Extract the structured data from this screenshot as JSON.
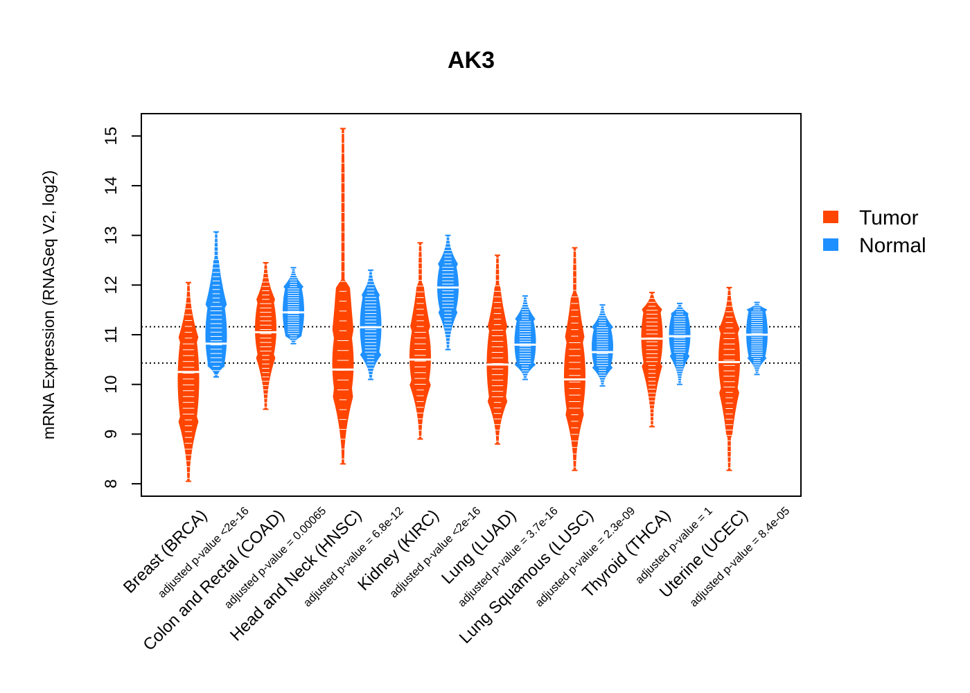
{
  "chart_data": {
    "type": "beanplot",
    "title": "AK3",
    "xlabel": "",
    "ylabel": "mRNA Expression (RNASeq V2, log2)",
    "ylim": [
      7.75,
      15.45
    ],
    "yticks": [
      8,
      9,
      10,
      11,
      12,
      13,
      14,
      15
    ],
    "reference_lines": [
      10.43,
      11.16
    ],
    "colors": {
      "Tumor": "#FF4500",
      "Normal": "#1E90FF"
    },
    "legend": {
      "position": "right",
      "entries": [
        "Tumor",
        "Normal"
      ]
    },
    "categories": [
      "Breast (BRCA)",
      "Colon and Rectal (COAD)",
      "Head and Neck (HNSC)",
      "Kidney (KIRC)",
      "Lung (LUAD)",
      "Lung Squamous (LUSC)",
      "Thyroid (THCA)",
      "Uterine (UCEC)"
    ],
    "pvalues": [
      "adjusted p-value <2e-16",
      "adjusted p-value = 0.00065",
      "adjusted p-value = 6.8e-12",
      "adjusted p-value <2e-16",
      "adjusted p-value = 3.7e-16",
      "adjusted p-value = 2.3e-09",
      "adjusted p-value = 1",
      "adjusted p-value = 8.4e-05"
    ],
    "series": [
      {
        "name": "Tumor",
        "min": [
          8.05,
          9.5,
          8.4,
          8.9,
          8.8,
          8.27,
          9.15,
          8.27
        ],
        "max": [
          12.05,
          12.45,
          15.15,
          12.85,
          12.6,
          12.75,
          11.85,
          11.95
        ],
        "median": [
          10.25,
          11.05,
          10.3,
          10.5,
          10.4,
          10.1,
          10.92,
          10.45
        ],
        "bulk_low": [
          9.3,
          10.6,
          9.8,
          10.0,
          9.7,
          9.5,
          10.4,
          9.9
        ],
        "bulk_high": [
          10.9,
          11.65,
          11.05,
          11.1,
          11.1,
          10.85,
          11.5,
          11.1
        ]
      },
      {
        "name": "Normal",
        "min": [
          10.15,
          10.82,
          10.1,
          10.7,
          10.1,
          9.97,
          10.0,
          10.2
        ],
        "max": [
          13.07,
          12.35,
          12.3,
          13.0,
          11.78,
          11.6,
          11.63,
          11.65
        ],
        "median": [
          10.82,
          11.45,
          11.15,
          11.95,
          10.8,
          10.65,
          10.97,
          11.0
        ],
        "bulk_low": [
          10.4,
          11.0,
          10.6,
          11.5,
          10.4,
          10.35,
          10.6,
          10.55
        ],
        "bulk_high": [
          11.6,
          11.95,
          11.75,
          12.4,
          11.3,
          11.15,
          11.4,
          11.5
        ]
      }
    ]
  }
}
